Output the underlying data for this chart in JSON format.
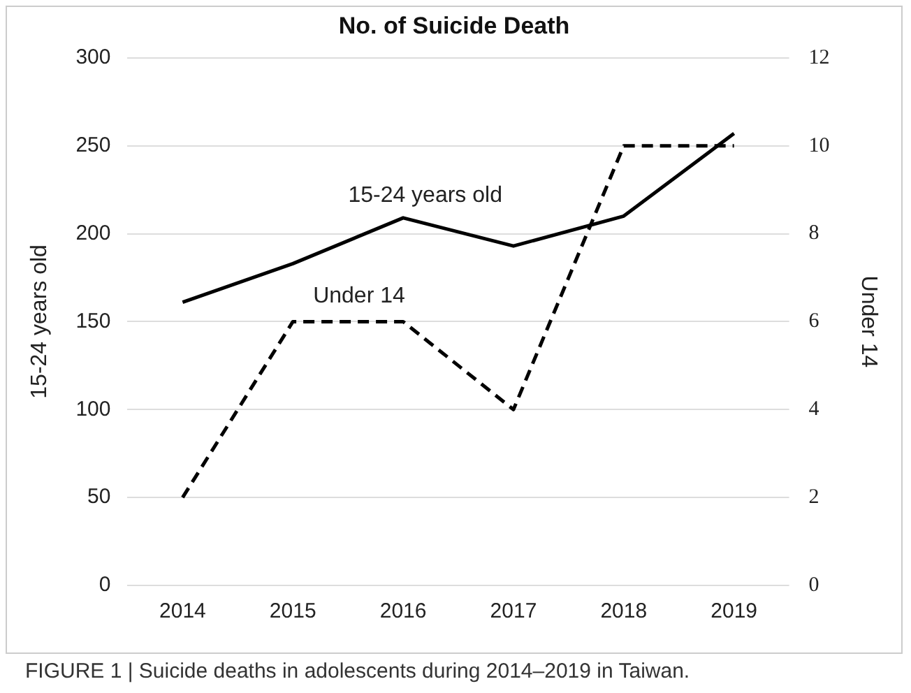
{
  "chart_data": {
    "type": "line",
    "title": "No. of Suicide Death",
    "ylabel": "15-24 years old",
    "y2label": "Under 14",
    "categories": [
      "2014",
      "2015",
      "2016",
      "2017",
      "2018",
      "2019"
    ],
    "series": [
      {
        "name": "15-24 years old",
        "color": "#000000",
        "values": [
          161,
          183,
          209,
          193,
          210,
          257
        ],
        "line_style": "solid"
      },
      {
        "name": "Under 14",
        "color": "#000000",
        "values": [
          2,
          6,
          6,
          4,
          10,
          10
        ],
        "axis": "y2",
        "line_style": "dashed"
      }
    ],
    "ylim": [
      0,
      300
    ],
    "yticks": [
      0,
      50,
      100,
      150,
      200,
      250,
      300
    ],
    "y2lim": [
      0,
      12
    ],
    "y2ticks": [
      0,
      2,
      4,
      6,
      8,
      10,
      12
    ],
    "grid": "y",
    "legend": false,
    "marker": "none",
    "annotations": [
      "FIGURE 1 | Suicide deaths in adolescents during 2014–2019 in Taiwan."
    ]
  }
}
